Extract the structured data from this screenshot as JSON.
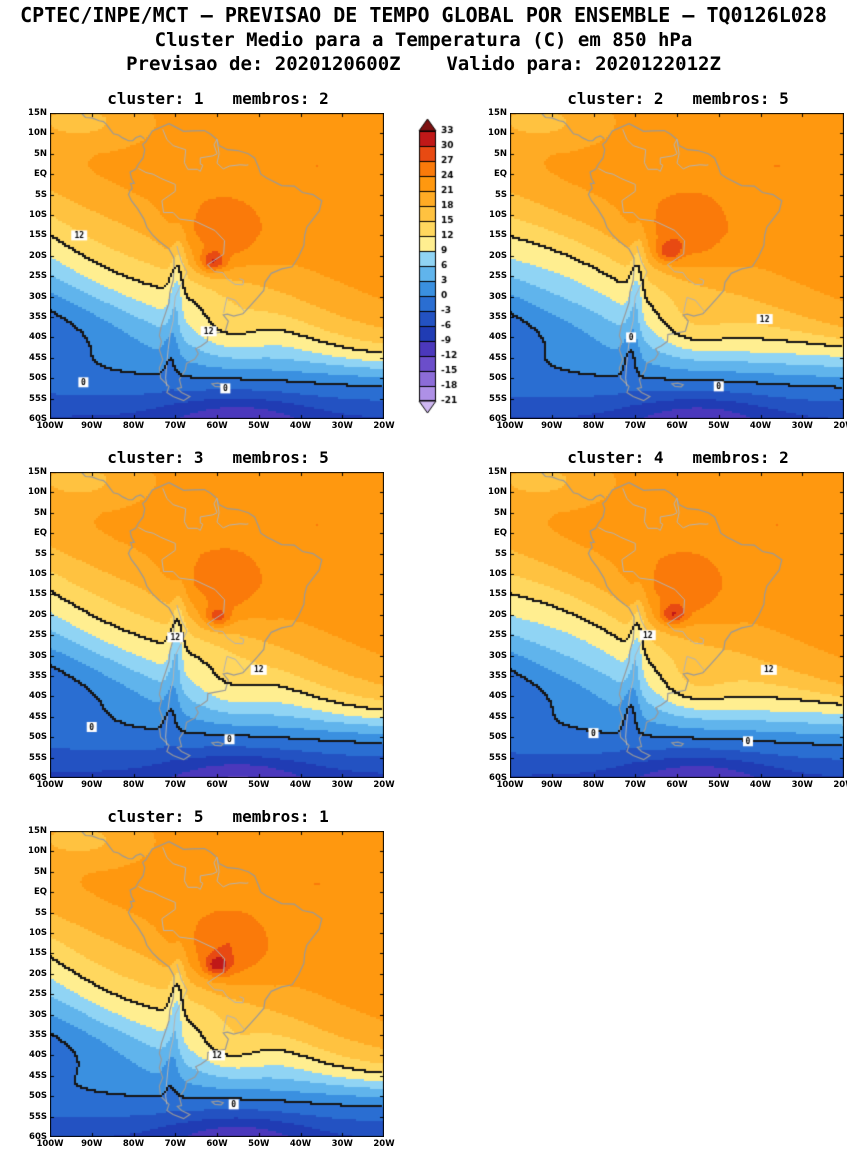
{
  "header": {
    "line1": "CPTEC/INPE/MCT – PREVISAO DE TEMPO GLOBAL POR ENSEMBLE – TQ0126L028",
    "line2": "Cluster Medio para a Temperatura (C) em 850 hPa",
    "line3": "Previsao de: 2020120600Z    Valido para: 2020122012Z"
  },
  "legend": {
    "values": [
      "33",
      "30",
      "27",
      "24",
      "21",
      "18",
      "15",
      "12",
      "9",
      "6",
      "3",
      "0",
      "-3",
      "-6",
      "-9",
      "-12",
      "-15",
      "-18",
      "-21"
    ],
    "thresholds": [
      33,
      30,
      27,
      24,
      21,
      18,
      15,
      12,
      9,
      6,
      3,
      0,
      -3,
      -6,
      -9,
      -12,
      -15,
      -18,
      -21
    ],
    "colors": [
      "#7d1010",
      "#c01818",
      "#e84a12",
      "#fa7a0a",
      "#ff980f",
      "#ffab24",
      "#ffc240",
      "#ffd75e",
      "#ffee90",
      "#90d4f4",
      "#60b4ec",
      "#3a90e0",
      "#2a6ed2",
      "#2352c2",
      "#203cb4",
      "#4b38bc",
      "#6b4eca",
      "#8c6cd8",
      "#ae90e6",
      "#cfb8f2"
    ]
  },
  "contour_levels": [
    12,
    0
  ],
  "map": {
    "extent": {
      "lon_min": -100,
      "lon_max": -20,
      "lat_min": -60,
      "lat_max": 15
    },
    "lat_ticks": [
      {
        "label": "15N",
        "lat": 15
      },
      {
        "label": "10N",
        "lat": 10
      },
      {
        "label": "5N",
        "lat": 5
      },
      {
        "label": "EQ",
        "lat": 0
      },
      {
        "label": "5S",
        "lat": -5
      },
      {
        "label": "10S",
        "lat": -10
      },
      {
        "label": "15S",
        "lat": -15
      },
      {
        "label": "20S",
        "lat": -20
      },
      {
        "label": "25S",
        "lat": -25
      },
      {
        "label": "30S",
        "lat": -30
      },
      {
        "label": "35S",
        "lat": -35
      },
      {
        "label": "40S",
        "lat": -40
      },
      {
        "label": "45S",
        "lat": -45
      },
      {
        "label": "50S",
        "lat": -50
      },
      {
        "label": "55S",
        "lat": -55
      },
      {
        "label": "60S",
        "lat": -60
      }
    ],
    "lon_ticks": [
      {
        "label": "100W",
        "lon": -100
      },
      {
        "label": "90W",
        "lon": -90
      },
      {
        "label": "80W",
        "lon": -80
      },
      {
        "label": "70W",
        "lon": -70
      },
      {
        "label": "60W",
        "lon": -60
      },
      {
        "label": "50W",
        "lon": -50
      },
      {
        "label": "40W",
        "lon": -40
      },
      {
        "label": "30W",
        "lon": -30
      },
      {
        "label": "20W",
        "lon": -20
      }
    ],
    "coast_color": "#999999",
    "border_color": "#b3b3b3",
    "coastlines": [
      {
        "closed": true,
        "pts": [
          [
            -77,
            8
          ],
          [
            -75.5,
            10.6
          ],
          [
            -71.5,
            12.4
          ],
          [
            -70,
            11.6
          ],
          [
            -68,
            10.5
          ],
          [
            -66,
            10.6
          ],
          [
            -63,
            10.7
          ],
          [
            -61.5,
            9.8
          ],
          [
            -60,
            8.5
          ],
          [
            -59.5,
            7
          ],
          [
            -57.5,
            6
          ],
          [
            -55,
            5.8
          ],
          [
            -52.5,
            5
          ],
          [
            -51,
            4
          ],
          [
            -50,
            1.5
          ],
          [
            -49.5,
            0
          ],
          [
            -48,
            -1
          ],
          [
            -44.5,
            -2.8
          ],
          [
            -41.5,
            -2.9
          ],
          [
            -39.5,
            -4.5
          ],
          [
            -37,
            -5
          ],
          [
            -34.9,
            -6.5
          ],
          [
            -35.5,
            -9
          ],
          [
            -37,
            -11
          ],
          [
            -38.5,
            -13
          ],
          [
            -39,
            -15
          ],
          [
            -39.2,
            -17.5
          ],
          [
            -40.5,
            -20.3
          ],
          [
            -42,
            -22.7
          ],
          [
            -44.5,
            -23.2
          ],
          [
            -47,
            -24.3
          ],
          [
            -48.5,
            -26.5
          ],
          [
            -48.8,
            -28.5
          ],
          [
            -50.5,
            -30.5
          ],
          [
            -52,
            -32.2
          ],
          [
            -53.8,
            -34.2
          ],
          [
            -56,
            -34.8
          ],
          [
            -57.5,
            -34.3
          ],
          [
            -58.5,
            -34.5
          ],
          [
            -57.3,
            -36
          ],
          [
            -58,
            -38.5
          ],
          [
            -60,
            -38.9
          ],
          [
            -62.2,
            -39.3
          ],
          [
            -62.3,
            -41
          ],
          [
            -63.8,
            -42.1
          ],
          [
            -65.1,
            -42.8
          ],
          [
            -64.5,
            -44
          ],
          [
            -65.3,
            -45.3
          ],
          [
            -67.3,
            -46.4
          ],
          [
            -67.6,
            -48
          ],
          [
            -69,
            -50.3
          ],
          [
            -68.5,
            -52.3
          ],
          [
            -69.5,
            -52.5
          ],
          [
            -68.5,
            -53.5
          ],
          [
            -66.5,
            -54.5
          ],
          [
            -68,
            -55.5
          ],
          [
            -70.5,
            -54.5
          ],
          [
            -72,
            -53.5
          ],
          [
            -71.5,
            -52
          ],
          [
            -73.5,
            -50
          ],
          [
            -73.8,
            -47.5
          ],
          [
            -73,
            -45.5
          ],
          [
            -73.8,
            -43
          ],
          [
            -73.3,
            -41
          ],
          [
            -73.8,
            -39.5
          ],
          [
            -73.3,
            -37
          ],
          [
            -72.3,
            -34
          ],
          [
            -71.5,
            -31.5
          ],
          [
            -71.3,
            -29
          ],
          [
            -70.5,
            -26
          ],
          [
            -70.3,
            -23
          ],
          [
            -70.3,
            -20.5
          ],
          [
            -71.5,
            -18.3
          ],
          [
            -73.8,
            -16.5
          ],
          [
            -75.5,
            -14.8
          ],
          [
            -76.8,
            -13
          ],
          [
            -77.5,
            -11
          ],
          [
            -79,
            -8.5
          ],
          [
            -80.5,
            -6.5
          ],
          [
            -81.2,
            -5
          ],
          [
            -80.8,
            -4
          ],
          [
            -80.3,
            -3.5
          ],
          [
            -80.7,
            -2.3
          ],
          [
            -79.8,
            -2.2
          ],
          [
            -80.5,
            -1
          ],
          [
            -80.8,
            0.5
          ],
          [
            -79.5,
            1.2
          ],
          [
            -78.8,
            2.5
          ],
          [
            -77.7,
            4
          ],
          [
            -77.3,
            6
          ],
          [
            -77.8,
            7.3
          ],
          [
            -77,
            8
          ]
        ]
      },
      {
        "closed": true,
        "pts": [
          [
            -61.2,
            -51.4
          ],
          [
            -59.8,
            -51.2
          ],
          [
            -58.5,
            -51.6
          ],
          [
            -59,
            -52.1
          ],
          [
            -60.5,
            -52
          ],
          [
            -61.2,
            -51.4
          ]
        ]
      },
      {
        "closed": false,
        "pts": [
          [
            -92.5,
            15
          ],
          [
            -91.5,
            13.9
          ],
          [
            -90,
            13.8
          ],
          [
            -88.2,
            13.1
          ],
          [
            -87.2,
            12.9
          ],
          [
            -86.5,
            12.2
          ],
          [
            -85.7,
            11.1
          ],
          [
            -84.8,
            9.9
          ],
          [
            -83.6,
            9.6
          ],
          [
            -82.6,
            8.9
          ],
          [
            -81.2,
            8.2
          ],
          [
            -80.2,
            8.2
          ],
          [
            -79.4,
            9
          ],
          [
            -78.3,
            9.4
          ],
          [
            -77.4,
            8.7
          ]
        ]
      }
    ],
    "borders": [
      [
        [
          -69.6,
          -17.6
        ],
        [
          -68.5,
          -21.5
        ],
        [
          -67.2,
          -24
        ],
        [
          -68.6,
          -27
        ],
        [
          -70,
          -30
        ],
        [
          -70.3,
          -33
        ],
        [
          -70.5,
          -36
        ],
        [
          -71.2,
          -39
        ],
        [
          -71.7,
          -43
        ],
        [
          -72.1,
          -47
        ],
        [
          -72.3,
          -50
        ],
        [
          -72,
          -52
        ]
      ],
      [
        [
          -70,
          -4.2
        ],
        [
          -73.2,
          -6.5
        ],
        [
          -72.8,
          -9.4
        ],
        [
          -70.5,
          -9.4
        ],
        [
          -69,
          -11
        ],
        [
          -65.3,
          -11.5
        ],
        [
          -60.5,
          -13.8
        ],
        [
          -58.2,
          -16.3
        ]
      ],
      [
        [
          -58.2,
          -16.3
        ],
        [
          -58.4,
          -19.6
        ],
        [
          -62.3,
          -22.2
        ],
        [
          -60.6,
          -23.9
        ],
        [
          -58.6,
          -24.1
        ],
        [
          -57.6,
          -25.6
        ],
        [
          -55.7,
          -27
        ],
        [
          -53.8,
          -27.1
        ],
        [
          -53.6,
          -26
        ],
        [
          -54.6,
          -25.6
        ]
      ],
      [
        [
          -73,
          11
        ],
        [
          -72,
          8.5
        ],
        [
          -70.5,
          7
        ],
        [
          -69,
          6.5
        ],
        [
          -67.5,
          6
        ],
        [
          -67.8,
          2.8
        ],
        [
          -67,
          1.2
        ],
        [
          -64.7,
          1.2
        ],
        [
          -64,
          0.7
        ],
        [
          -63.4,
          2.2
        ],
        [
          -64,
          2.5
        ],
        [
          -64,
          4
        ],
        [
          -61,
          4.5
        ],
        [
          -60,
          5
        ],
        [
          -60.7,
          7.2
        ],
        [
          -60,
          8.6
        ]
      ],
      [
        [
          -78.8,
          1.4
        ],
        [
          -77,
          0.4
        ],
        [
          -75.3,
          0
        ],
        [
          -73.5,
          -1
        ],
        [
          -70,
          -2.5
        ],
        [
          -70,
          -4.2
        ]
      ],
      [
        [
          -53.4,
          -33.7
        ],
        [
          -55.6,
          -30.9
        ],
        [
          -57.6,
          -30.2
        ],
        [
          -58.1,
          -32.4
        ],
        [
          -58.4,
          -34
        ]
      ],
      [
        [
          -60,
          8.6
        ],
        [
          -59.5,
          5
        ],
        [
          -60,
          2.7
        ],
        [
          -58.5,
          1.3
        ],
        [
          -57,
          2
        ],
        [
          -54.5,
          2.3
        ],
        [
          -53,
          2.2
        ],
        [
          -52.5,
          2.3
        ]
      ]
    ]
  },
  "field_profile": [
    [
      12,
      22.5
    ],
    [
      -8,
      22
    ],
    [
      -16,
      20.5
    ],
    [
      -22,
      18
    ],
    [
      -28,
      15
    ],
    [
      -33,
      12
    ],
    [
      -39,
      8.5
    ],
    [
      -46,
      3.5
    ],
    [
      -52,
      -1
    ],
    [
      -57,
      -4.5
    ],
    [
      -62,
      -7.5
    ],
    [
      -74,
      -12
    ]
  ],
  "panels": [
    {
      "cluster": 1,
      "members": 2,
      "title": "cluster: 1   membros: 2",
      "field": {
        "shift": 0,
        "hotAmp": 5.5,
        "hotLon": -59,
        "hotLat": -15,
        "coreAmp": 9,
        "coreLon": -61,
        "coreLat": -21.5,
        "andes": 5,
        "andes2": 2,
        "tongue": 4,
        "wave": 1.2
      },
      "contour_labels": [
        {
          "v": "12",
          "lon": -93,
          "lat": -15
        },
        {
          "v": "12",
          "lon": -62,
          "lat": -38.5
        },
        {
          "v": "0",
          "lon": -92,
          "lat": -51
        },
        {
          "v": "0",
          "lon": -58,
          "lat": -52.5
        }
      ]
    },
    {
      "cluster": 2,
      "members": 5,
      "title": "cluster: 2   membros: 5",
      "field": {
        "shift": 0.4,
        "hotAmp": 5.6,
        "hotLon": -58,
        "hotLat": -14,
        "coreAmp": 7,
        "coreLon": -62,
        "coreLat": -19,
        "andes": 5,
        "andes2": 3,
        "tongue": 3.2,
        "wave": -1.0
      },
      "contour_labels": [
        {
          "v": "12",
          "lon": -39,
          "lat": -35.5
        },
        {
          "v": "0",
          "lon": -71,
          "lat": -40
        },
        {
          "v": "0",
          "lon": -50,
          "lat": -52
        }
      ]
    },
    {
      "cluster": 3,
      "members": 5,
      "title": "cluster: 3   membros: 5",
      "field": {
        "shift": -0.8,
        "hotAmp": 5.2,
        "hotLon": -59,
        "hotLat": -13,
        "coreAmp": 7.5,
        "coreLon": -60,
        "coreLat": -20.5,
        "andes": 5.5,
        "andes2": 2,
        "tongue": 3,
        "wave": 1.0
      },
      "contour_labels": [
        {
          "v": "12",
          "lon": -70,
          "lat": -25.5
        },
        {
          "v": "12",
          "lon": -50,
          "lat": -33.5
        },
        {
          "v": "0",
          "lon": -90,
          "lat": -47.5
        },
        {
          "v": "0",
          "lon": -57,
          "lat": -50.5
        }
      ]
    },
    {
      "cluster": 4,
      "members": 2,
      "title": "cluster: 4   membros: 2",
      "field": {
        "shift": 0,
        "hotAmp": 5.4,
        "hotLon": -59,
        "hotLat": -14,
        "coreAmp": 8,
        "coreLon": -61,
        "coreLat": -20,
        "andes": 5,
        "andes2": 3,
        "tongue": 3.5,
        "wave": -1.2
      },
      "contour_labels": [
        {
          "v": "12",
          "lon": -67,
          "lat": -25
        },
        {
          "v": "12",
          "lon": -38,
          "lat": -33.5
        },
        {
          "v": "0",
          "lon": -80,
          "lat": -49
        },
        {
          "v": "0",
          "lon": -43,
          "lat": -51
        }
      ]
    },
    {
      "cluster": 5,
      "members": 1,
      "title": "cluster: 5   membros: 1",
      "field": {
        "shift": 0.8,
        "hotAmp": 5.6,
        "hotLon": -58,
        "hotLat": -14,
        "coreAmp": 7.5,
        "coreLon": -60,
        "coreLat": -18,
        "andes": 5,
        "andes2": 2,
        "tongue": 4.5,
        "wave": 1.4
      },
      "contour_labels": [
        {
          "v": "12",
          "lon": -60,
          "lat": -40
        },
        {
          "v": "0",
          "lon": -56,
          "lat": -52
        }
      ]
    }
  ]
}
